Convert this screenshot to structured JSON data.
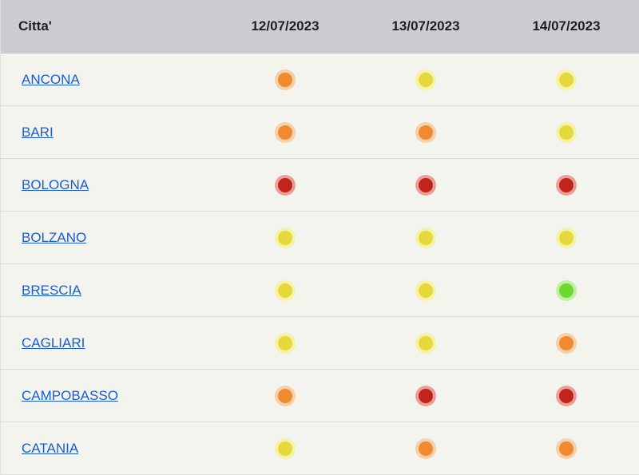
{
  "header": {
    "city_label": "Citta'",
    "dates": [
      "12/07/2023",
      "13/07/2023",
      "14/07/2023"
    ]
  },
  "colors": {
    "orange": "#f08a30",
    "yellow": "#e4d93a",
    "red": "#c0241b",
    "green": "#6ed633",
    "link": "#1a5cd8",
    "header_bg": "#cbcdd1"
  },
  "rows": [
    {
      "city": "ANCONA",
      "levels": [
        "orange",
        "yellow",
        "yellow"
      ]
    },
    {
      "city": "BARI",
      "levels": [
        "orange",
        "orange",
        "yellow"
      ]
    },
    {
      "city": "BOLOGNA",
      "levels": [
        "red",
        "red",
        "red"
      ]
    },
    {
      "city": "BOLZANO",
      "levels": [
        "yellow",
        "yellow",
        "yellow"
      ]
    },
    {
      "city": "BRESCIA",
      "levels": [
        "yellow",
        "yellow",
        "green"
      ]
    },
    {
      "city": "CAGLIARI",
      "levels": [
        "yellow",
        "yellow",
        "orange"
      ]
    },
    {
      "city": "CAMPOBASSO",
      "levels": [
        "orange",
        "red",
        "red"
      ]
    },
    {
      "city": "CATANIA",
      "levels": [
        "yellow",
        "orange",
        "orange"
      ]
    }
  ]
}
